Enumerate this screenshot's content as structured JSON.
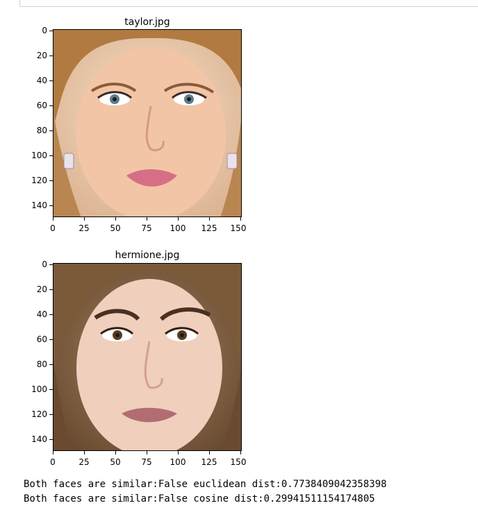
{
  "plots": [
    {
      "title": "taylor.jpg",
      "image_description": "face-photo-blonde",
      "yticks": [
        "0",
        "20",
        "40",
        "60",
        "80",
        "100",
        "120",
        "140"
      ],
      "xticks": [
        "0",
        "25",
        "50",
        "75",
        "100",
        "125",
        "150"
      ],
      "colors": {
        "bg": "#e6c0a0",
        "skin": "#f2c5a6",
        "hair": "#b07a40",
        "lips": "#d66f86"
      }
    },
    {
      "title": "hermione.jpg",
      "image_description": "face-photo-brunette",
      "yticks": [
        "0",
        "20",
        "40",
        "60",
        "80",
        "100",
        "120",
        "140"
      ],
      "xticks": [
        "0",
        "25",
        "50",
        "75",
        "100",
        "125",
        "150"
      ],
      "colors": {
        "bg": "#6d5034",
        "skin": "#f0cfbd",
        "hair": "#7b5a3a",
        "lips": "#b26d73"
      }
    }
  ],
  "output": [
    "Both faces are similar:False euclidean dist:0.7738409042358398",
    "Both faces are similar:False cosine dist:0.29941511154174805"
  ]
}
